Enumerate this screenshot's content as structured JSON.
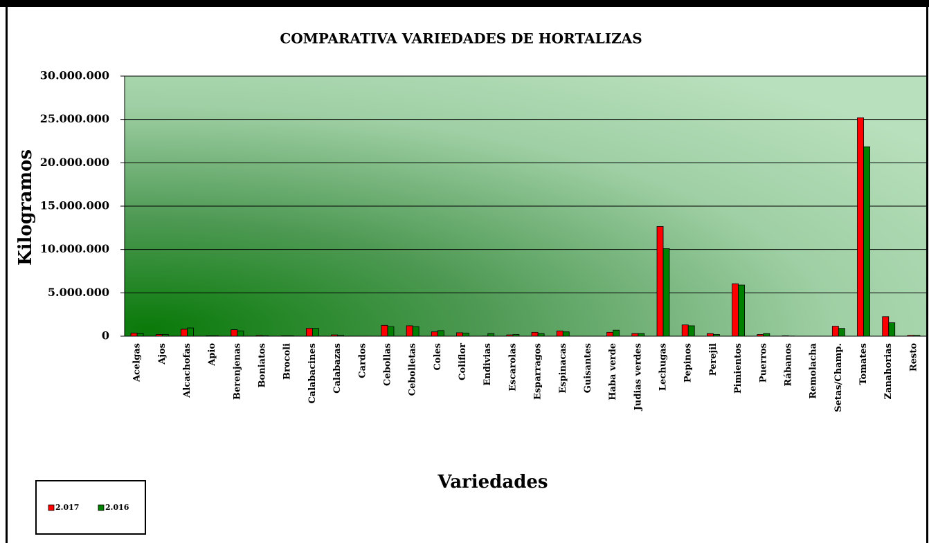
{
  "chart_data": {
    "type": "bar",
    "title": "COMPARATIVA VARIEDADES DE HORTALIZAS",
    "x_label": "Variedades",
    "y_label": "Kilogramos",
    "categories": [
      "Acelgas",
      "Ajos",
      "Alcachofas",
      "Apio",
      "Berenjenas",
      "Boniatos",
      "Brocoli",
      "Calabacines",
      "Calabazas",
      "Cardos",
      "Cebollas",
      "Cebolletas",
      "Coles",
      "Coliflor",
      "Endivias",
      "Escarolas",
      "Esparragos",
      "Espinacas",
      "Guisantes",
      "Haba verde",
      "Judias verdes",
      "Lechugas",
      "Pepinos",
      "Perejil",
      "Pimientos",
      "Puerros",
      "Rábanos",
      "Remolacha",
      "Setas/Champ.",
      "Tomates",
      "Zanahorias",
      "Resto"
    ],
    "series": [
      {
        "name": "2.017",
        "color": "#ff0000",
        "values": [
          350000,
          200000,
          800000,
          50000,
          750000,
          80000,
          50000,
          900000,
          150000,
          0,
          1250000,
          1200000,
          500000,
          400000,
          20000,
          150000,
          450000,
          600000,
          0,
          450000,
          300000,
          12650000,
          1300000,
          300000,
          6050000,
          200000,
          50000,
          0,
          1150000,
          25200000,
          2250000,
          100000
        ]
      },
      {
        "name": "2.016",
        "color": "#008000",
        "values": [
          300000,
          200000,
          950000,
          50000,
          600000,
          50000,
          50000,
          900000,
          100000,
          0,
          1100000,
          1100000,
          650000,
          350000,
          300000,
          200000,
          300000,
          500000,
          0,
          700000,
          300000,
          10100000,
          1200000,
          200000,
          5900000,
          300000,
          20000,
          0,
          900000,
          21850000,
          1550000,
          100000
        ]
      }
    ],
    "ylim": [
      0,
      30000000
    ],
    "yticks": [
      0,
      {
        "value": 5000000,
        "label": "5.000.000"
      },
      {
        "value": 10000000,
        "label": "10.000.000"
      },
      {
        "value": 15000000,
        "label": "15.000.000"
      },
      {
        "value": 20000000,
        "label": "20.000.000"
      },
      {
        "value": 25000000,
        "label": "25.000.000"
      },
      {
        "value": 30000000,
        "label": "30.000.000"
      }
    ],
    "grid": true,
    "legend": "bottom-left"
  }
}
